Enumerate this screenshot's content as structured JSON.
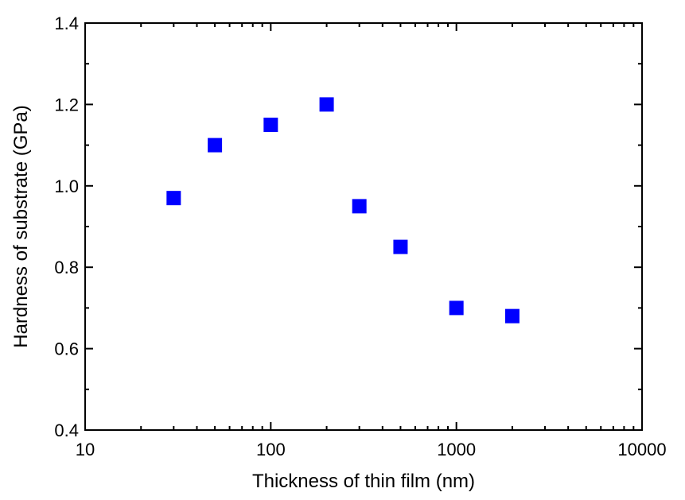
{
  "chart_data": {
    "type": "scatter",
    "title": "",
    "xlabel": "Thickness of thin film (nm)",
    "ylabel": "Hardness of substrate (GPa)",
    "x_scale": "log",
    "xlim": [
      10,
      10000
    ],
    "ylim": [
      0.4,
      1.4
    ],
    "x_ticks": [
      {
        "value": 10,
        "label": "10"
      },
      {
        "value": 100,
        "label": "100"
      },
      {
        "value": 1000,
        "label": "1000"
      },
      {
        "value": 10000,
        "label": "10000"
      }
    ],
    "y_ticks": [
      {
        "value": 0.4,
        "label": "0.4"
      },
      {
        "value": 0.6,
        "label": "0.6"
      },
      {
        "value": 0.8,
        "label": "0.8"
      },
      {
        "value": 1.0,
        "label": "1.0"
      },
      {
        "value": 1.2,
        "label": "1.2"
      },
      {
        "value": 1.4,
        "label": "1.4"
      }
    ],
    "grid": false,
    "marker": "square",
    "marker_color": "#0000ff",
    "series": [
      {
        "x": [
          30,
          50,
          100,
          200,
          300,
          500,
          1000,
          2000
        ],
        "y": [
          0.97,
          1.1,
          1.15,
          1.2,
          0.95,
          0.85,
          0.7,
          0.68
        ]
      }
    ]
  }
}
